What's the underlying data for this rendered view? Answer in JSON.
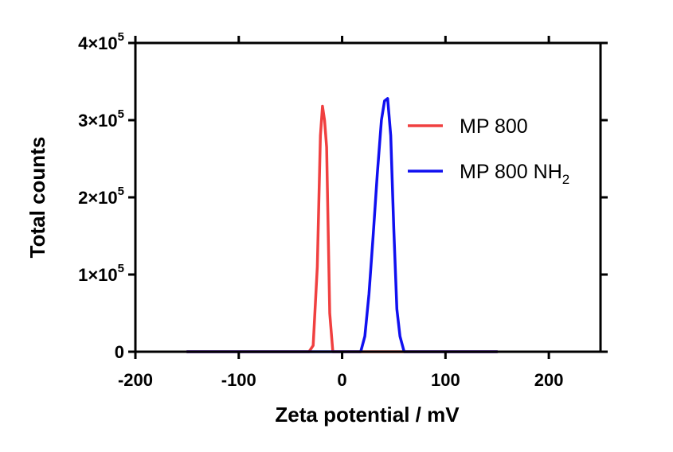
{
  "chart_data": {
    "type": "line",
    "title": "",
    "xlabel": "Zeta potential / mV",
    "ylabel": "Total counts",
    "xlim": [
      -200,
      250
    ],
    "ylim": [
      0,
      400000
    ],
    "x_ticks": [
      -200,
      -100,
      0,
      100,
      200
    ],
    "x_tick_labels": [
      "-200",
      "-100",
      "0",
      "100",
      "200"
    ],
    "y_ticks": [
      0,
      100000,
      200000,
      300000,
      400000
    ],
    "y_tick_labels": [
      {
        "value": 0,
        "mantissa": "0",
        "times": "",
        "exponent": ""
      },
      {
        "value": 100000,
        "mantissa": "1",
        "times": "×10",
        "exponent": "5"
      },
      {
        "value": 200000,
        "mantissa": "2",
        "times": "×10",
        "exponent": "5"
      },
      {
        "value": 300000,
        "mantissa": "3",
        "times": "×10",
        "exponent": "5"
      },
      {
        "value": 400000,
        "mantissa": "4",
        "times": "×10",
        "exponent": "5"
      }
    ],
    "grid": false,
    "legend_position": "top-right",
    "series": [
      {
        "name": "MP 800",
        "name_main": "MP 800",
        "name_sub": "",
        "color": "#f04040",
        "x": [
          -150,
          -32,
          -28,
          -24,
          -21,
          -19,
          -17,
          -15,
          -12,
          -9,
          150
        ],
        "y": [
          0,
          0,
          8000,
          110000,
          280000,
          318000,
          300000,
          265000,
          50000,
          0,
          0
        ]
      },
      {
        "name": "MP 800 NH2",
        "name_main": "MP 800 NH",
        "name_sub": "2",
        "color": "#1010f0",
        "x": [
          -150,
          18,
          22,
          26,
          30,
          34,
          38,
          41,
          44,
          47,
          50,
          53,
          56,
          60,
          64,
          150
        ],
        "y": [
          0,
          0,
          20000,
          75000,
          150000,
          230000,
          300000,
          325000,
          328000,
          280000,
          160000,
          55000,
          20000,
          0,
          0,
          0
        ]
      }
    ]
  }
}
